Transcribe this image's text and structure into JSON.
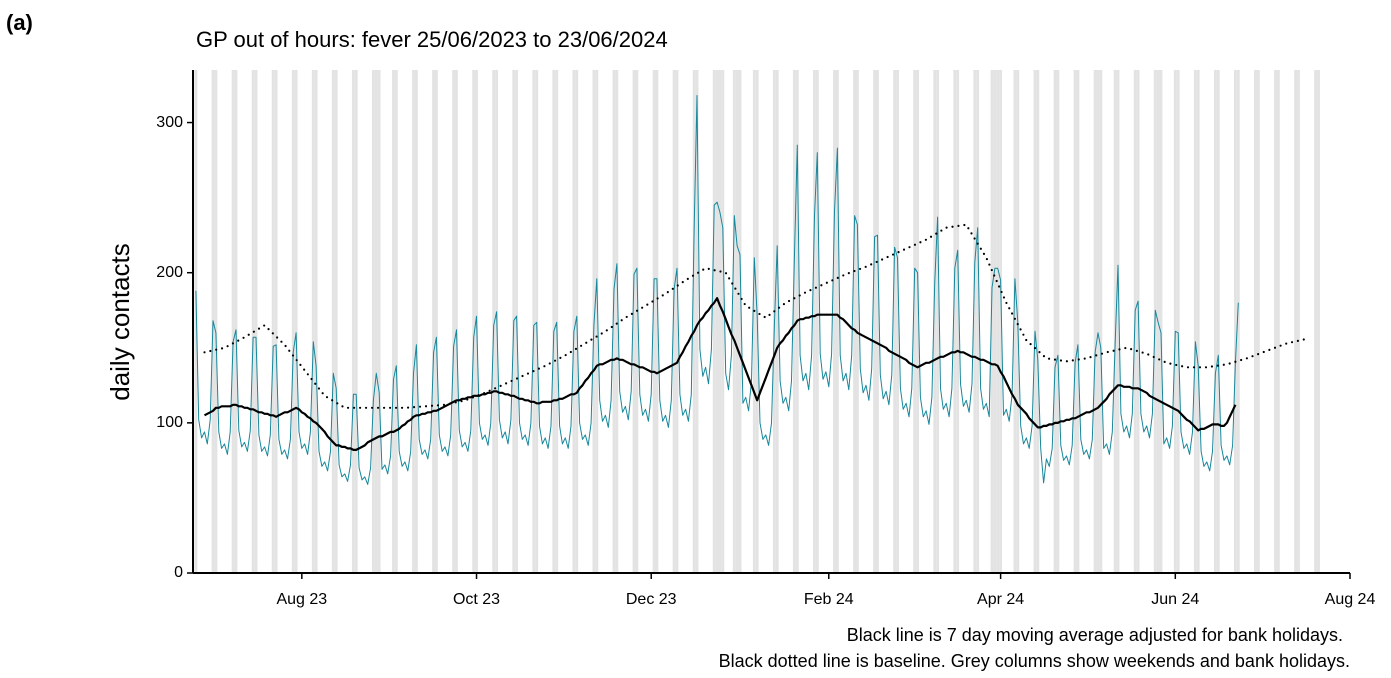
{
  "panel_label": "(a)",
  "chart_data": {
    "type": "line",
    "title": "GP out of hours: fever 25/06/2023 to 23/06/2024",
    "y_label": "daily contacts",
    "notes": [
      "Black line is 7 day moving average adjusted for bank holidays.",
      "Black dotted line is baseline. Grey columns show weekends and bank holidays."
    ],
    "xlim": [
      -1,
      403
    ],
    "ylim": [
      0,
      335
    ],
    "xticks": [
      {
        "value": 37,
        "label": "Aug 23"
      },
      {
        "value": 98,
        "label": "Oct 23"
      },
      {
        "value": 159,
        "label": "Dec 23"
      },
      {
        "value": 221,
        "label": "Feb 24"
      },
      {
        "value": 281,
        "label": "Apr 24"
      },
      {
        "value": 342,
        "label": "Jun 24"
      },
      {
        "value": 403,
        "label": "Aug 24"
      }
    ],
    "yticks": [
      0,
      100,
      200,
      300
    ],
    "shade_color": "#e3e3e3",
    "shaded_days": [
      0,
      6,
      7,
      13,
      14,
      20,
      21,
      27,
      28,
      34,
      35,
      41,
      42,
      48,
      49,
      55,
      56,
      62,
      63,
      64,
      69,
      70,
      76,
      77,
      83,
      84,
      90,
      91,
      97,
      98,
      104,
      105,
      111,
      112,
      118,
      119,
      125,
      126,
      132,
      133,
      139,
      140,
      146,
      147,
      153,
      154,
      160,
      161,
      167,
      168,
      174,
      175,
      181,
      182,
      183,
      184,
      188,
      189,
      190,
      195,
      196,
      202,
      203,
      209,
      210,
      216,
      217,
      223,
      224,
      230,
      231,
      237,
      238,
      244,
      245,
      251,
      252,
      258,
      259,
      265,
      266,
      272,
      273,
      278,
      279,
      280,
      281,
      286,
      287,
      293,
      294,
      300,
      301,
      307,
      308,
      314,
      315,
      316,
      321,
      322,
      328,
      329,
      335,
      336,
      337,
      342,
      343,
      349,
      350,
      356,
      357,
      363,
      364,
      370,
      371,
      377,
      378,
      384,
      385,
      391,
      392
    ],
    "x": [
      0,
      1,
      2,
      3,
      4,
      5,
      6,
      7,
      8,
      9,
      10,
      11,
      12,
      13,
      14,
      15,
      16,
      17,
      18,
      19,
      20,
      21,
      22,
      23,
      24,
      25,
      26,
      27,
      28,
      29,
      30,
      31,
      32,
      33,
      34,
      35,
      36,
      37,
      38,
      39,
      40,
      41,
      42,
      43,
      44,
      45,
      46,
      47,
      48,
      49,
      50,
      51,
      52,
      53,
      54,
      55,
      56,
      57,
      58,
      59,
      60,
      61,
      62,
      63,
      64,
      65,
      66,
      67,
      68,
      69,
      70,
      71,
      72,
      73,
      74,
      75,
      76,
      77,
      78,
      79,
      80,
      81,
      82,
      83,
      84,
      85,
      86,
      87,
      88,
      89,
      90,
      91,
      92,
      93,
      94,
      95,
      96,
      97,
      98,
      99,
      100,
      101,
      102,
      103,
      104,
      105,
      106,
      107,
      108,
      109,
      110,
      111,
      112,
      113,
      114,
      115,
      116,
      117,
      118,
      119,
      120,
      121,
      122,
      123,
      124,
      125,
      126,
      127,
      128,
      129,
      130,
      131,
      132,
      133,
      134,
      135,
      136,
      137,
      138,
      139,
      140,
      141,
      142,
      143,
      144,
      145,
      146,
      147,
      148,
      149,
      150,
      151,
      152,
      153,
      154,
      155,
      156,
      157,
      158,
      159,
      160,
      161,
      162,
      163,
      164,
      165,
      166,
      167,
      168,
      169,
      170,
      171,
      172,
      173,
      174,
      175,
      176,
      177,
      178,
      179,
      180,
      181,
      182,
      183,
      184,
      185,
      186,
      187,
      188,
      189,
      190,
      191,
      192,
      193,
      194,
      195,
      196,
      197,
      198,
      199,
      200,
      201,
      202,
      203,
      204,
      205,
      206,
      207,
      208,
      209,
      210,
      211,
      212,
      213,
      214,
      215,
      216,
      217,
      218,
      219,
      220,
      221,
      222,
      223,
      224,
      225,
      226,
      227,
      228,
      229,
      230,
      231,
      232,
      233,
      234,
      235,
      236,
      237,
      238,
      239,
      240,
      241,
      242,
      243,
      244,
      245,
      246,
      247,
      248,
      249,
      250,
      251,
      252,
      253,
      254,
      255,
      256,
      257,
      258,
      259,
      260,
      261,
      262,
      263,
      264,
      265,
      266,
      267,
      268,
      269,
      270,
      271,
      272,
      273,
      274,
      275,
      276,
      277,
      278,
      279,
      280,
      281,
      282,
      283,
      284,
      285,
      286,
      287,
      288,
      289,
      290,
      291,
      292,
      293,
      294,
      295,
      296,
      297,
      298,
      299,
      300,
      301,
      302,
      303,
      304,
      305,
      306,
      307,
      308,
      309,
      310,
      311,
      312,
      313,
      314,
      315,
      316,
      317,
      318,
      319,
      320,
      321,
      322,
      323,
      324,
      325,
      326,
      327,
      328,
      329,
      330,
      331,
      332,
      333,
      334,
      335,
      336,
      337,
      338,
      339,
      340,
      341,
      342,
      343,
      344,
      345,
      346,
      347,
      348,
      349,
      350,
      351,
      352,
      353,
      354,
      355,
      356,
      357,
      358,
      359,
      360,
      361,
      362,
      363,
      364
    ],
    "series": [
      {
        "color": "#17879b",
        "width": 1,
        "values": [
          188,
          102,
          90,
          94,
          86,
          102,
          168,
          160,
          94,
          83,
          86,
          79,
          94,
          154,
          162,
          95,
          84,
          87,
          81,
          95,
          157,
          157,
          92,
          81,
          84,
          78,
          92,
          151,
          152,
          89,
          79,
          82,
          76,
          89,
          147,
          160,
          94,
          83,
          86,
          79,
          94,
          154,
          138,
          81,
          71,
          74,
          68,
          81,
          133,
          123,
          72,
          64,
          66,
          61,
          72,
          119,
          119,
          70,
          62,
          64,
          59,
          70,
          115,
          133,
          120,
          69,
          72,
          66,
          78,
          129,
          138,
          81,
          71,
          74,
          68,
          81,
          133,
          152,
          89,
          79,
          82,
          76,
          89,
          147,
          157,
          92,
          81,
          84,
          78,
          92,
          151,
          162,
          95,
          84,
          87,
          81,
          95,
          157,
          171,
          100,
          89,
          92,
          85,
          100,
          165,
          174,
          102,
          90,
          94,
          86,
          102,
          168,
          171,
          100,
          89,
          92,
          85,
          100,
          165,
          167,
          98,
          86,
          90,
          83,
          98,
          161,
          167,
          98,
          86,
          90,
          83,
          98,
          161,
          171,
          100,
          89,
          92,
          85,
          100,
          165,
          196,
          115,
          101,
          105,
          97,
          115,
          189,
          206,
          121,
          107,
          111,
          102,
          121,
          199,
          203,
          119,
          105,
          109,
          101,
          119,
          196,
          196,
          115,
          101,
          105,
          97,
          115,
          189,
          203,
          119,
          105,
          109,
          101,
          119,
          231,
          318,
          149,
          131,
          137,
          126,
          149,
          245,
          247,
          240,
          230,
          133,
          122,
          145,
          238,
          218,
          212,
          113,
          117,
          108,
          128,
          210,
          171,
          100,
          89,
          92,
          85,
          100,
          165,
          218,
          128,
          113,
          117,
          108,
          128,
          210,
          285,
          145,
          128,
          133,
          122,
          145,
          238,
          280,
          146,
          129,
          134,
          124,
          146,
          241,
          283,
          145,
          128,
          133,
          122,
          145,
          238,
          232,
          136,
          120,
          125,
          115,
          136,
          224,
          225,
          132,
          116,
          121,
          112,
          132,
          217,
          210,
          123,
          109,
          113,
          104,
          123,
          203,
          200,
          117,
          104,
          108,
          99,
          117,
          193,
          237,
          123,
          109,
          113,
          104,
          123,
          203,
          215,
          126,
          111,
          115,
          107,
          126,
          207,
          230,
          123,
          109,
          113,
          104,
          190,
          203,
          203,
          195,
          105,
          109,
          101,
          119,
          196,
          167,
          98,
          86,
          90,
          83,
          98,
          161,
          142,
          83,
          60,
          76,
          71,
          83,
          137,
          145,
          85,
          75,
          78,
          72,
          85,
          140,
          152,
          89,
          79,
          82,
          76,
          89,
          147,
          160,
          150,
          83,
          86,
          79,
          94,
          154,
          205,
          106,
          94,
          98,
          90,
          106,
          175,
          181,
          106,
          94,
          98,
          90,
          106,
          175,
          167,
          160,
          86,
          90,
          83,
          98,
          161,
          160,
          94,
          83,
          86,
          79,
          94,
          154,
          138,
          81,
          71,
          74,
          68,
          81,
          133,
          145,
          85,
          75,
          78,
          72,
          85,
          140,
          180
        ]
      },
      {
        "color": "#000000",
        "width": 2.2,
        "values": [
          null,
          null,
          null,
          105,
          106,
          107,
          108,
          110,
          110,
          111,
          111,
          111,
          111,
          112,
          112,
          111,
          111,
          110,
          110,
          109,
          109,
          108,
          107,
          107,
          106,
          106,
          105,
          105,
          104,
          105,
          106,
          107,
          107,
          108,
          109,
          110,
          109,
          107,
          106,
          104,
          103,
          101,
          100,
          98,
          96,
          94,
          91,
          89,
          87,
          85,
          85,
          84,
          84,
          83,
          83,
          82,
          82,
          83,
          84,
          85,
          87,
          88,
          89,
          90,
          91,
          91,
          92,
          93,
          94,
          94,
          95,
          96,
          98,
          99,
          101,
          102,
          104,
          105,
          105,
          106,
          106,
          107,
          107,
          108,
          108,
          109,
          110,
          111,
          112,
          113,
          114,
          115,
          115,
          116,
          116,
          117,
          117,
          118,
          118,
          118,
          119,
          119,
          120,
          120,
          121,
          121,
          120,
          120,
          119,
          119,
          118,
          118,
          117,
          116,
          116,
          115,
          115,
          114,
          114,
          113,
          113,
          114,
          114,
          114,
          114,
          115,
          115,
          116,
          116,
          117,
          118,
          119,
          119,
          120,
          123,
          125,
          128,
          130,
          133,
          135,
          138,
          139,
          139,
          140,
          141,
          142,
          142,
          143,
          142,
          142,
          141,
          140,
          139,
          139,
          138,
          137,
          137,
          136,
          135,
          134,
          134,
          133,
          134,
          135,
          136,
          137,
          138,
          139,
          140,
          144,
          147,
          151,
          154,
          158,
          161,
          165,
          168,
          170,
          173,
          175,
          178,
          180,
          183,
          178,
          174,
          169,
          164,
          159,
          155,
          150,
          145,
          140,
          135,
          130,
          125,
          120,
          115,
          120,
          125,
          130,
          135,
          140,
          145,
          150,
          153,
          155,
          158,
          160,
          163,
          165,
          168,
          169,
          169,
          170,
          170,
          171,
          171,
          172,
          172,
          172,
          172,
          172,
          172,
          172,
          172,
          170,
          169,
          167,
          165,
          163,
          162,
          160,
          159,
          158,
          157,
          156,
          155,
          154,
          153,
          152,
          151,
          150,
          148,
          147,
          146,
          145,
          144,
          143,
          142,
          140,
          139,
          138,
          137,
          138,
          139,
          140,
          140,
          141,
          142,
          143,
          144,
          144,
          145,
          146,
          147,
          147,
          148,
          147,
          147,
          146,
          145,
          144,
          144,
          143,
          142,
          142,
          141,
          140,
          139,
          139,
          138,
          134,
          131,
          127,
          123,
          119,
          116,
          112,
          110,
          108,
          106,
          103,
          101,
          99,
          97,
          97,
          98,
          98,
          99,
          99,
          100,
          100,
          101,
          101,
          102,
          102,
          103,
          103,
          104,
          105,
          106,
          107,
          107,
          108,
          109,
          110,
          112,
          114,
          116,
          119,
          121,
          123,
          125,
          125,
          124,
          124,
          124,
          123,
          123,
          123,
          122,
          121,
          120,
          118,
          117,
          116,
          115,
          114,
          113,
          112,
          111,
          110,
          109,
          108,
          106,
          104,
          102,
          101,
          99,
          97,
          95,
          96,
          96,
          97,
          98,
          99,
          99,
          99,
          98,
          98,
          100,
          104,
          108,
          112,
          null
        ]
      },
      {
        "color": "#000000",
        "width": 2.2,
        "dotted": true,
        "x": [
          3,
          10,
          17,
          24,
          31,
          38,
          45,
          52,
          59,
          66,
          73,
          80,
          87,
          94,
          101,
          108,
          115,
          122,
          129,
          136,
          143,
          150,
          157,
          164,
          171,
          178,
          185,
          192,
          199,
          206,
          213,
          220,
          227,
          234,
          241,
          248,
          255,
          262,
          269,
          276,
          283,
          290,
          297,
          304,
          311,
          318,
          325,
          332,
          339,
          346,
          353,
          360,
          367,
          374,
          381,
          388
        ],
        "values": [
          147,
          150,
          157,
          165,
          152,
          135,
          118,
          110,
          110,
          110,
          110,
          111,
          112,
          115,
          120,
          126,
          132,
          138,
          145,
          153,
          161,
          170,
          178,
          186,
          195,
          203,
          200,
          178,
          170,
          180,
          187,
          193,
          199,
          204,
          210,
          216,
          222,
          230,
          232,
          210,
          180,
          155,
          143,
          141,
          143,
          147,
          150,
          146,
          140,
          137,
          137,
          139,
          143,
          148,
          153,
          156
        ]
      }
    ]
  }
}
